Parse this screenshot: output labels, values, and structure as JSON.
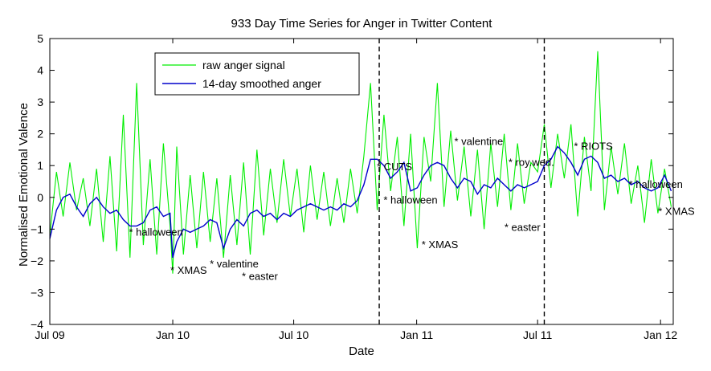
{
  "chart_data": {
    "type": "line",
    "title": "933 Day Time Series for Anger in Twitter Content",
    "xlabel": "Date",
    "ylabel": "Normalised Emotional Valence",
    "xlim": [
      0,
      933
    ],
    "ylim": [
      -4,
      5
    ],
    "x_ticks": [
      {
        "label": "Jul 09",
        "day": 0
      },
      {
        "label": "Jan 10",
        "day": 184
      },
      {
        "label": "Jul 10",
        "day": 365
      },
      {
        "label": "Jan 11",
        "day": 549
      },
      {
        "label": "Jul 11",
        "day": 730
      },
      {
        "label": "Jan 12",
        "day": 914
      }
    ],
    "y_ticks": [
      -4,
      -3,
      -2,
      -1,
      0,
      1,
      2,
      3,
      4,
      5
    ],
    "legend": {
      "position": "top-left",
      "entries": [
        "raw anger signal",
        "14-day smoothed anger"
      ]
    },
    "series_colors": {
      "raw": "#00ee00",
      "smoothed": "#0000cc"
    },
    "series": [
      {
        "name": "raw anger signal",
        "x": [
          0,
          10,
          20,
          30,
          40,
          50,
          60,
          70,
          80,
          90,
          100,
          110,
          120,
          130,
          140,
          150,
          160,
          170,
          180,
          184,
          190,
          200,
          210,
          220,
          230,
          240,
          250,
          260,
          270,
          280,
          290,
          300,
          310,
          320,
          330,
          340,
          350,
          360,
          370,
          380,
          390,
          400,
          410,
          420,
          430,
          440,
          450,
          460,
          470,
          480,
          490,
          500,
          510,
          520,
          530,
          540,
          550,
          560,
          570,
          580,
          590,
          600,
          610,
          620,
          630,
          640,
          650,
          660,
          670,
          680,
          690,
          700,
          710,
          720,
          730,
          740,
          750,
          760,
          770,
          780,
          790,
          800,
          810,
          820,
          830,
          840,
          850,
          860,
          870,
          880,
          890,
          900,
          910,
          920,
          930
        ],
        "values": [
          -1.2,
          0.8,
          -0.6,
          1.1,
          -0.4,
          0.6,
          -0.9,
          0.9,
          -1.4,
          1.3,
          -1.7,
          2.6,
          -1.9,
          3.6,
          -1.5,
          1.2,
          -1.8,
          1.7,
          -0.9,
          -2.4,
          1.6,
          -1.8,
          0.7,
          -1.6,
          0.8,
          -1.4,
          0.6,
          -1.9,
          0.7,
          -1.5,
          1.1,
          -1.8,
          1.5,
          -1.2,
          0.9,
          -0.8,
          1.2,
          -0.6,
          0.9,
          -1.1,
          1.0,
          -0.7,
          0.8,
          -0.9,
          0.6,
          -0.8,
          0.9,
          -0.5,
          1.3,
          3.6,
          -0.4,
          2.6,
          0.2,
          1.9,
          -0.9,
          2.0,
          -1.6,
          1.9,
          0.5,
          3.6,
          -0.3,
          2.1,
          -0.1,
          1.6,
          -0.6,
          1.5,
          -1.0,
          1.7,
          -0.3,
          2.0,
          -0.4,
          1.7,
          -0.2,
          1.1,
          0.8,
          2.3,
          0.3,
          2.0,
          0.6,
          2.3,
          -0.6,
          1.9,
          0.2,
          4.6,
          -0.4,
          1.6,
          0.1,
          1.7,
          -0.2,
          1.0,
          -0.8,
          1.2,
          -0.5,
          0.9,
          -0.3
        ]
      },
      {
        "name": "14-day smoothed anger",
        "x": [
          0,
          10,
          20,
          30,
          40,
          50,
          60,
          70,
          80,
          90,
          100,
          110,
          120,
          130,
          140,
          150,
          160,
          170,
          180,
          184,
          190,
          200,
          210,
          220,
          230,
          240,
          250,
          260,
          270,
          280,
          290,
          300,
          310,
          320,
          330,
          340,
          350,
          360,
          370,
          380,
          390,
          400,
          410,
          420,
          430,
          440,
          450,
          460,
          470,
          480,
          490,
          500,
          510,
          520,
          530,
          540,
          550,
          560,
          570,
          580,
          590,
          600,
          610,
          620,
          630,
          640,
          650,
          660,
          670,
          680,
          690,
          700,
          710,
          720,
          730,
          740,
          750,
          760,
          770,
          780,
          790,
          800,
          810,
          820,
          830,
          840,
          850,
          860,
          870,
          880,
          890,
          900,
          910,
          920,
          930
        ],
        "values": [
          -1.3,
          -0.4,
          0.0,
          0.1,
          -0.3,
          -0.6,
          -0.2,
          0.0,
          -0.3,
          -0.5,
          -0.4,
          -0.7,
          -0.9,
          -0.9,
          -0.8,
          -0.4,
          -0.3,
          -0.6,
          -0.5,
          -1.9,
          -1.4,
          -1.0,
          -1.1,
          -1.0,
          -0.9,
          -0.7,
          -0.8,
          -1.6,
          -1.0,
          -0.7,
          -0.9,
          -0.5,
          -0.4,
          -0.6,
          -0.5,
          -0.7,
          -0.5,
          -0.6,
          -0.4,
          -0.3,
          -0.2,
          -0.3,
          -0.4,
          -0.3,
          -0.4,
          -0.2,
          -0.3,
          -0.1,
          0.4,
          1.2,
          1.2,
          1.0,
          0.6,
          0.8,
          1.1,
          0.2,
          0.3,
          0.7,
          1.0,
          1.1,
          1.0,
          0.6,
          0.3,
          0.6,
          0.5,
          0.1,
          0.4,
          0.3,
          0.6,
          0.4,
          0.2,
          0.4,
          0.3,
          0.4,
          0.5,
          1.0,
          1.2,
          1.6,
          1.4,
          1.1,
          0.7,
          1.2,
          1.3,
          1.1,
          0.6,
          0.7,
          0.5,
          0.6,
          0.4,
          0.5,
          0.3,
          0.2,
          0.3,
          0.7,
          0.2
        ]
      }
    ],
    "vlines": [
      {
        "day": 493
      },
      {
        "day": 740
      }
    ],
    "annotations": [
      {
        "text": "* halloween",
        "day": 122,
        "y": -1.1
      },
      {
        "text": "* XMAS",
        "day": 184,
        "y": -2.3
      },
      {
        "text": "* valentine",
        "day": 243,
        "y": -2.1
      },
      {
        "text": "* easter",
        "day": 291,
        "y": -2.5
      },
      {
        "text": "* CUTS",
        "day": 493,
        "y": 0.95
      },
      {
        "text": "* halloween",
        "day": 503,
        "y": -0.1
      },
      {
        "text": "* XMAS",
        "day": 560,
        "y": -1.5
      },
      {
        "text": "* valentine",
        "day": 609,
        "y": 1.75
      },
      {
        "text": "* roy.wed.",
        "day": 690,
        "y": 1.1
      },
      {
        "text": "* easter",
        "day": 684,
        "y": -0.95
      },
      {
        "text": "* RIOTS",
        "day": 788,
        "y": 1.6
      },
      {
        "text": "* halloween",
        "day": 870,
        "y": 0.4
      },
      {
        "text": "* XMAS",
        "day": 914,
        "y": -0.45
      }
    ]
  }
}
